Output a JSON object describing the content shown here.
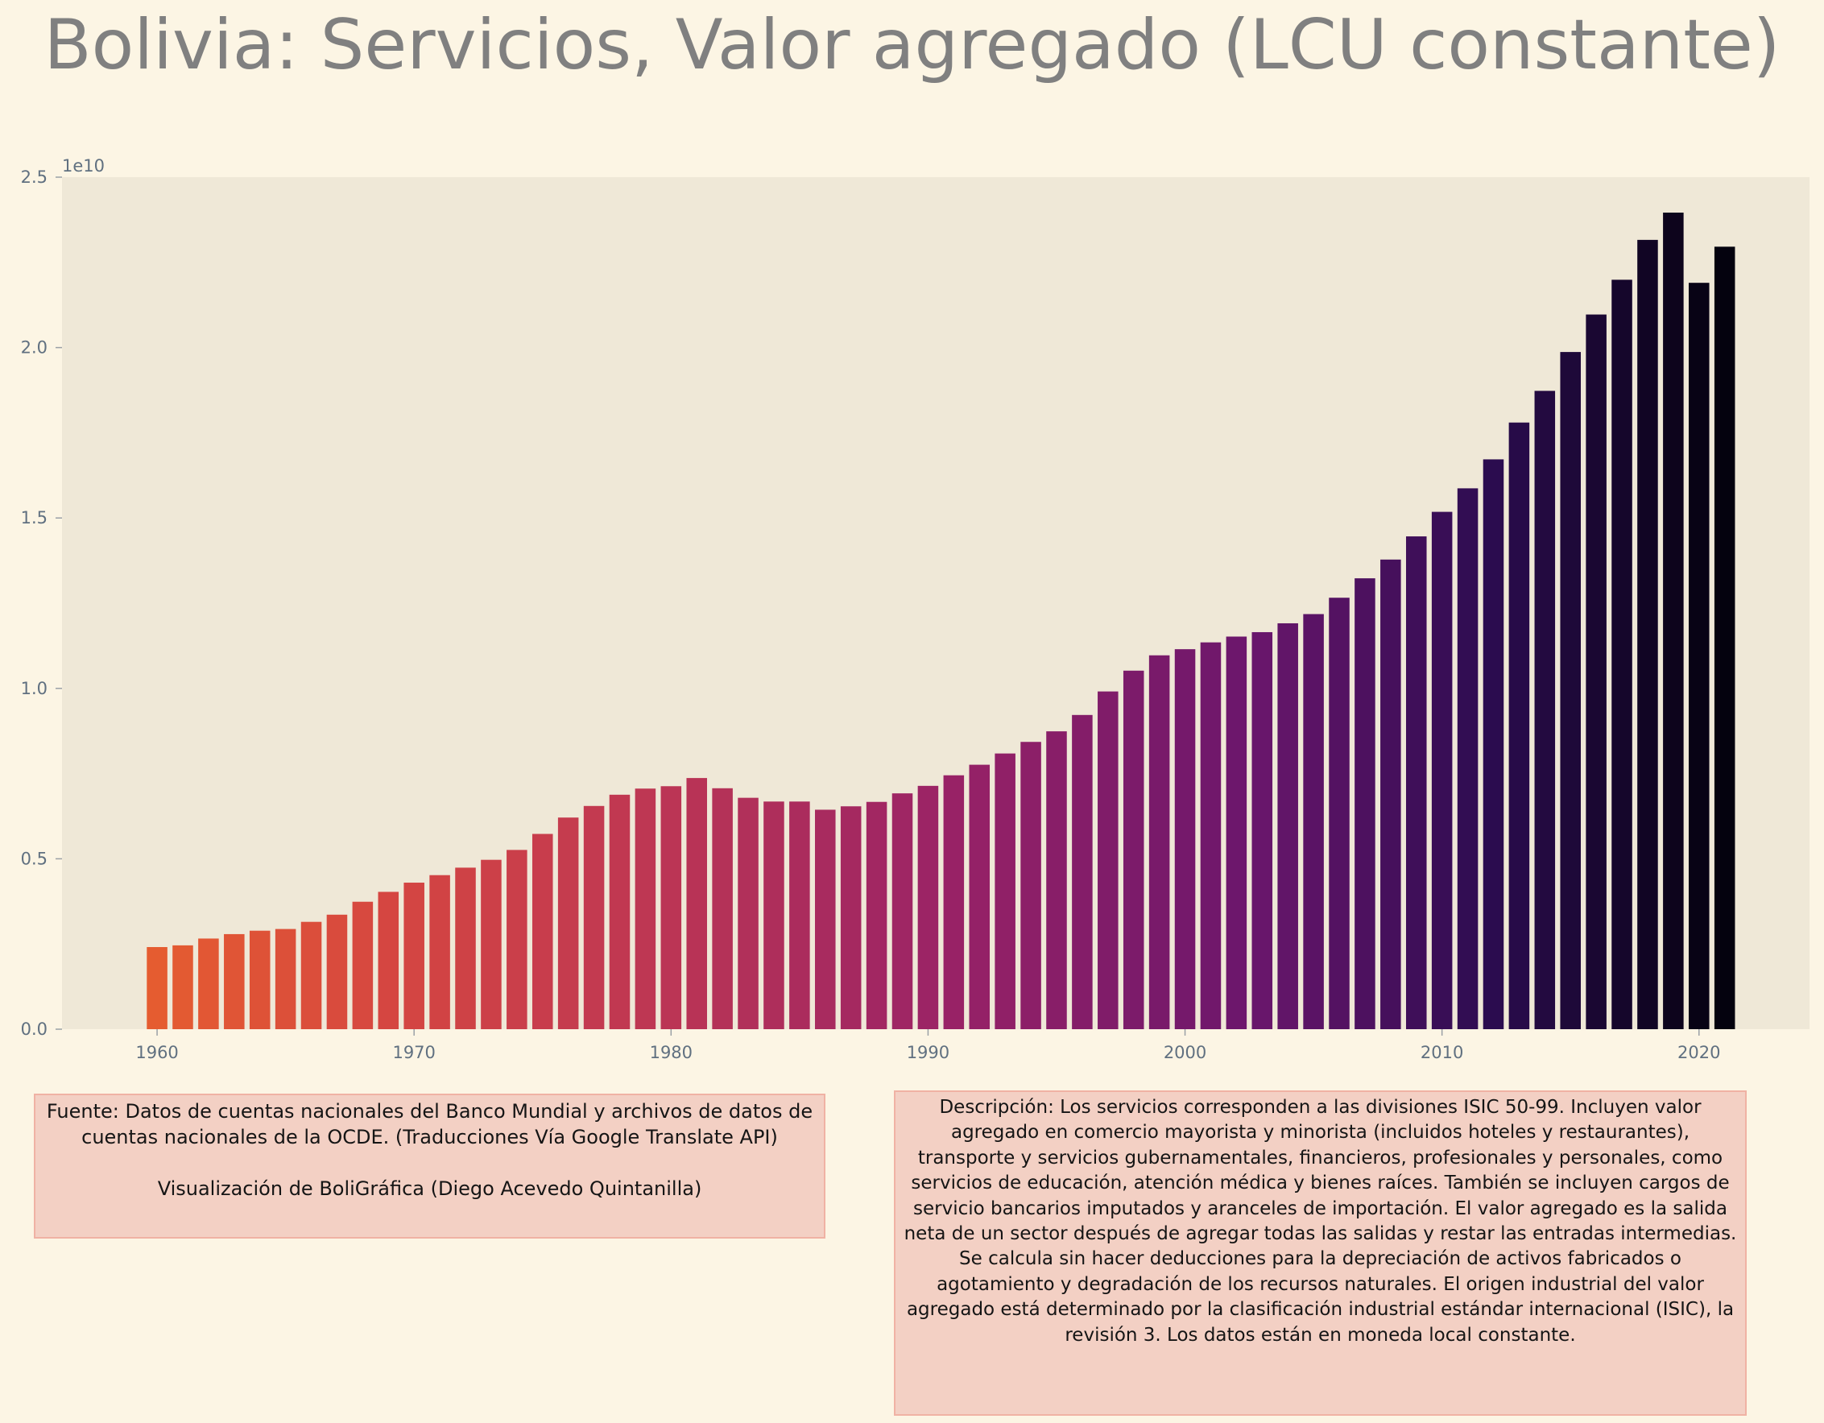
{
  "title": "Bolivia:  Servicios, Valor agregado (LCU constante)",
  "colors": {
    "background": "#fcf5e4",
    "plot_background": "#efe8d7",
    "title": "#808080",
    "tick_labels": "#607080",
    "note_box_fill": "#f3d0c4",
    "note_box_border": "#f0b2a4",
    "bar_palette": "inferno-like gradient from orange-red (#e55c30) through magenta/purple to black (#040210)"
  },
  "source_note": "Fuente: Datos de cuentas nacionales del Banco Mundial y archivos de datos de cuentas nacionales de la OCDE. (Traducciones Vía Google Translate API)\n\nVisualización de BoliGráfica (Diego Acevedo Quintanilla)",
  "description_note": "Descripción: Los servicios corresponden a las divisiones ISIC 50-99. Incluyen valor agregado en comercio mayorista y minorista (incluidos hoteles y restaurantes), transporte y servicios gubernamentales, financieros, profesionales y personales, como servicios de educación, atención médica y bienes raíces. También se incluyen cargos de servicio bancarios imputados y aranceles de importación. El valor agregado es la salida neta de un sector después de agregar todas las salidas y restar las entradas intermedias. Se calcula sin hacer deducciones para la depreciación de activos fabricados o agotamiento y degradación de los recursos naturales. El origen industrial del valor agregado está determinado por la clasificación industrial estándar internacional (ISIC), la revisión 3. Los datos están en moneda local constante.",
  "chart_data": {
    "type": "bar",
    "title": "Bolivia:  Servicios, Valor agregado (LCU constante)",
    "xlabel": "",
    "ylabel": "",
    "y_offset_label": "1e10",
    "x": [
      1960,
      1961,
      1962,
      1963,
      1964,
      1965,
      1966,
      1967,
      1968,
      1969,
      1970,
      1971,
      1972,
      1973,
      1974,
      1975,
      1976,
      1977,
      1978,
      1979,
      1980,
      1981,
      1982,
      1983,
      1984,
      1985,
      1986,
      1987,
      1988,
      1989,
      1990,
      1991,
      1992,
      1993,
      1994,
      1995,
      1996,
      1997,
      1998,
      1999,
      2000,
      2001,
      2002,
      2003,
      2004,
      2005,
      2006,
      2007,
      2008,
      2009,
      2010,
      2011,
      2012,
      2013,
      2014,
      2015,
      2016,
      2017,
      2018,
      2019,
      2020,
      2021
    ],
    "values": [
      2410000000.0,
      2460000000.0,
      2660000000.0,
      2790000000.0,
      2890000000.0,
      2940000000.0,
      3150000000.0,
      3360000000.0,
      3740000000.0,
      4030000000.0,
      4300000000.0,
      4520000000.0,
      4740000000.0,
      4970000000.0,
      5260000000.0,
      5730000000.0,
      6210000000.0,
      6550000000.0,
      6880000000.0,
      7060000000.0,
      7130000000.0,
      7370000000.0,
      7070000000.0,
      6790000000.0,
      6680000000.0,
      6680000000.0,
      6440000000.0,
      6540000000.0,
      6670000000.0,
      6920000000.0,
      7140000000.0,
      7450000000.0,
      7760000000.0,
      8090000000.0,
      8430000000.0,
      8740000000.0,
      9220000000.0,
      9910000000.0,
      10520000000.0,
      10970000000.0,
      11150000000.0,
      11350000000.0,
      11520000000.0,
      11650000000.0,
      11910000000.0,
      12180000000.0,
      12660000000.0,
      13230000000.0,
      13780000000.0,
      14460000000.0,
      15180000000.0,
      15870000000.0,
      16720000000.0,
      17800000000.0,
      18730000000.0,
      19870000000.0,
      20970000000.0,
      21990000000.0,
      23160000000.0,
      23960000000.0,
      21900000000.0,
      22960000000.0
    ],
    "xticks": [
      1960,
      1970,
      1980,
      1990,
      2000,
      2010,
      2020
    ],
    "xtick_labels": [
      "1960",
      "1970",
      "1980",
      "1990",
      "2000",
      "2010",
      "2020"
    ],
    "yticks": [
      0,
      5000000000.0,
      10000000000.0,
      15000000000.0,
      20000000000.0,
      25000000000.0
    ],
    "ytick_labels": [
      "0.0",
      "0.5",
      "1.0",
      "1.5",
      "2.0",
      "2.5"
    ],
    "xlim": [
      1956.3,
      2024.3
    ],
    "ylim": [
      0,
      25000000000.0
    ],
    "grid": false,
    "legend": "none"
  }
}
